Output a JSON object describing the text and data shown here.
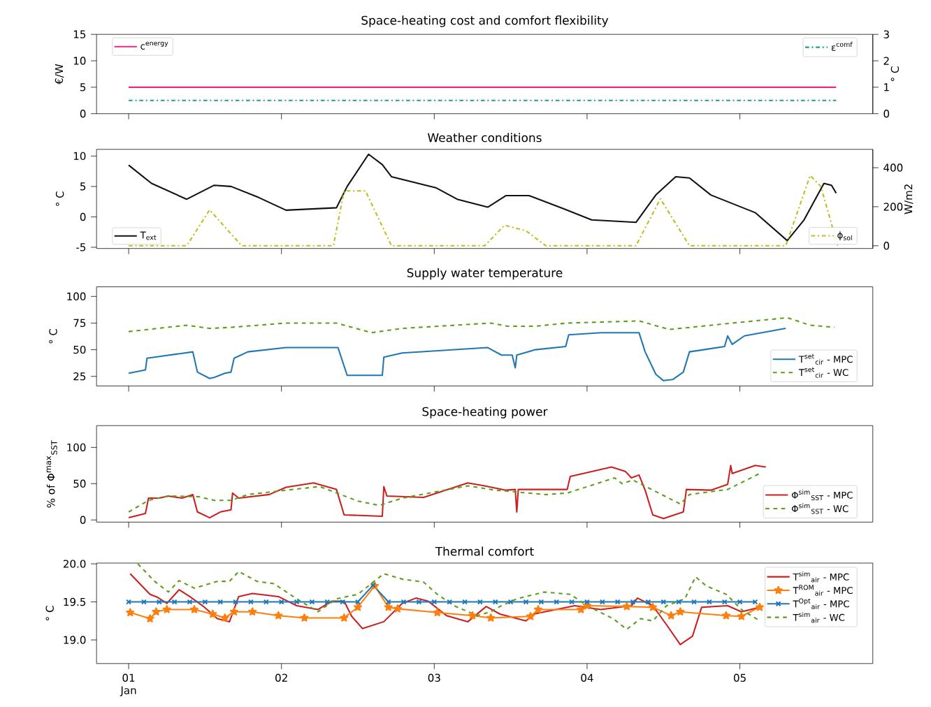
{
  "chart_data": [
    {
      "type": "line",
      "title": "Space-heating cost and comfort flexibility",
      "ylabel": "€/W",
      "y2label": "° C",
      "xlim": [
        0.79,
        5.87
      ],
      "xticks": [
        1,
        2,
        3,
        4,
        5
      ],
      "ylim": [
        0,
        15
      ],
      "yticks": [
        0,
        5,
        10,
        15
      ],
      "y2lim": [
        0,
        3
      ],
      "y2ticks": [
        0,
        1,
        2,
        3
      ],
      "tick_labels": "y",
      "legend": "top left",
      "series": [
        {
          "name": "c$^{energy}$",
          "color": "#e7298a",
          "x": [
            1,
            5.63
          ],
          "values": [
            5,
            5
          ],
          "line_style": "solid"
        },
        {
          "name": "ε$^{comf}$",
          "color": "#1a9e96",
          "x": [
            1,
            5.63
          ],
          "values": [
            0.5,
            0.5
          ],
          "line_style": "dashdot",
          "axis": "y2"
        }
      ]
    },
    {
      "type": "line",
      "title": "Weather conditions",
      "ylabel": "° C",
      "y2label": "W/m2",
      "xlim": [
        0.79,
        5.87
      ],
      "xticks": [
        1,
        2,
        3,
        4,
        5
      ],
      "ylim": [
        -5.2,
        11.1
      ],
      "yticks": [
        -5,
        0,
        5,
        10
      ],
      "y2lim": [
        -14,
        494
      ],
      "y2ticks": [
        0,
        200,
        400
      ],
      "tick_labels": "y",
      "legend": "bottom left",
      "series": [
        {
          "name": "T$_{ext}$",
          "color": "#111111",
          "x": [
            1,
            1.15,
            1.38,
            1.56,
            1.67,
            1.85,
            2.03,
            2.36,
            2.43,
            2.57,
            2.66,
            2.72,
            3.01,
            3.15,
            3.35,
            3.47,
            3.62,
            3.84,
            4.03,
            4.32,
            4.45,
            4.58,
            4.67,
            4.81,
            5.1,
            5.31,
            5.42,
            5.55,
            5.6,
            5.63
          ],
          "values": [
            8.5,
            5.5,
            2.9,
            5.2,
            5.0,
            3.2,
            1.1,
            1.5,
            5.0,
            10.3,
            8.6,
            6.6,
            4.8,
            2.9,
            1.6,
            3.5,
            3.5,
            1.4,
            -0.5,
            -0.9,
            3.6,
            6.6,
            6.4,
            3.6,
            0.7,
            -3.9,
            -0.5,
            5.5,
            5.2,
            3.9
          ],
          "line_style": "solid"
        },
        {
          "name": "ϕ$_{sol}$",
          "color": "#bcbd22",
          "x": [
            1,
            1.38,
            1.53,
            1.74,
            2.34,
            2.41,
            2.55,
            2.72,
            3.33,
            3.46,
            3.6,
            3.73,
            4.32,
            4.48,
            4.67,
            5.3,
            5.46,
            5.53,
            5.64
          ],
          "values": [
            0,
            0,
            184,
            0,
            0,
            281,
            281,
            0,
            0,
            105,
            77,
            0,
            0,
            241,
            0,
            0,
            360,
            304,
            0
          ],
          "line_style": "dashdot",
          "axis": "y2"
        }
      ]
    },
    {
      "type": "line",
      "title": "Supply water temperature",
      "ylabel": "° C",
      "xlim": [
        0.79,
        5.87
      ],
      "xticks": [
        1,
        2,
        3,
        4,
        5
      ],
      "ylim": [
        16,
        109
      ],
      "yticks": [
        25,
        50,
        75,
        100
      ],
      "tick_labels": "y",
      "legend": "bottom right",
      "series": [
        {
          "name": "T$^{set}$$_{cir}$ - MPC",
          "color": "#1f77b4",
          "x": [
            1,
            1.11,
            1.12,
            1.42,
            1.45,
            1.53,
            1.56,
            1.63,
            1.67,
            1.69,
            1.78,
            2.03,
            2.37,
            2.43,
            2.66,
            2.67,
            2.79,
            3.35,
            3.44,
            3.51,
            3.53,
            3.54,
            3.66,
            3.86,
            3.88,
            4.09,
            4.34,
            4.38,
            4.45,
            4.5,
            4.56,
            4.63,
            4.67,
            4.9,
            4.92,
            4.95,
            5.03,
            5.3
          ],
          "values": [
            28,
            31,
            42,
            48,
            29,
            23,
            24,
            28,
            29,
            42,
            48,
            52,
            52,
            26,
            26,
            43,
            47,
            52,
            45,
            45,
            33,
            45,
            50,
            53,
            64,
            66,
            66,
            48,
            27,
            21,
            22,
            29,
            48,
            53,
            63,
            55,
            63,
            70
          ],
          "line_style": "solid"
        },
        {
          "name": "T$^{set}$$_{cir}$ - WC",
          "color": "#5a9e1a",
          "x": [
            1,
            1.38,
            1.53,
            1.67,
            2.03,
            2.36,
            2.59,
            2.79,
            3.37,
            3.48,
            3.66,
            3.87,
            4.34,
            4.54,
            4.95,
            5.31,
            5.46,
            5.62
          ],
          "values": [
            67,
            73,
            70,
            71,
            75,
            75,
            66,
            70,
            75,
            72,
            72,
            75,
            77,
            69,
            75,
            80,
            73,
            71
          ],
          "line_style": "dashed"
        }
      ]
    },
    {
      "type": "line",
      "title": "Space-heating power",
      "ylabel": "% of Φ$^{max}$$_{SST}$",
      "xlim": [
        0.79,
        5.87
      ],
      "xticks": [
        1,
        2,
        3,
        4,
        5
      ],
      "ylim": [
        -3,
        130
      ],
      "yticks": [
        0,
        50,
        100
      ],
      "tick_labels": "y",
      "legend": "bottom right",
      "series": [
        {
          "name": "Φ$^{sim}$$_{SST}$ - MPC",
          "color": "#cc1f1f",
          "x": [
            1,
            1.11,
            1.13,
            1.2,
            1.26,
            1.35,
            1.42,
            1.45,
            1.53,
            1.6,
            1.67,
            1.68,
            1.72,
            1.92,
            2.03,
            2.21,
            2.36,
            2.41,
            2.66,
            2.67,
            2.69,
            2.93,
            3.22,
            3.33,
            3.47,
            3.53,
            3.54,
            3.55,
            3.87,
            3.89,
            4.16,
            4.25,
            4.29,
            4.34,
            4.38,
            4.43,
            4.5,
            4.63,
            4.65,
            4.81,
            4.92,
            4.94,
            4.95,
            5.1,
            5.17
          ],
          "values": [
            3,
            9,
            30,
            30,
            33,
            30,
            35,
            11,
            3,
            11,
            14,
            37,
            30,
            35,
            45,
            51,
            42,
            7,
            5,
            46,
            33,
            31,
            51,
            47,
            41,
            42,
            11,
            42,
            42,
            60,
            73,
            67,
            58,
            62,
            41,
            7,
            2,
            11,
            42,
            41,
            49,
            75,
            64,
            75,
            73
          ],
          "line_style": "solid"
        },
        {
          "name": "Φ$^{sim}$$_{SST}$ - WC",
          "color": "#5a9e1a",
          "x": [
            1,
            1.13,
            1.26,
            1.46,
            1.56,
            1.67,
            1.78,
            2.03,
            2.25,
            2.5,
            2.64,
            2.79,
            3.22,
            3.4,
            3.73,
            3.87,
            4.18,
            4.23,
            4.3,
            4.61,
            4.67,
            4.92,
            5.13
          ],
          "values": [
            11,
            27,
            33,
            32,
            27,
            27,
            35,
            41,
            46,
            26,
            20,
            30,
            47,
            41,
            35,
            37,
            58,
            50,
            55,
            22,
            35,
            42,
            64
          ],
          "line_style": "dashed"
        }
      ]
    },
    {
      "type": "line",
      "title": "Thermal comfort",
      "ylabel": "° C",
      "xlim": [
        0.79,
        5.87
      ],
      "xticks": [
        {
          "value": 1,
          "label": "01 Jan"
        },
        {
          "value": 2,
          "label": "02"
        },
        {
          "value": 3,
          "label": "03"
        },
        {
          "value": 4,
          "label": "04"
        },
        {
          "value": 5,
          "label": "05"
        }
      ],
      "ylim": [
        18.69,
        20.01
      ],
      "yticks": [
        {
          "value": 19,
          "label": "19.0"
        },
        {
          "value": 19.5,
          "label": "19.5"
        },
        {
          "value": 20,
          "label": "20.0"
        }
      ],
      "legend": "top right",
      "series": [
        {
          "name": "T$^{sim}$$_{air}$ - MPC",
          "color": "#cc1f1f",
          "x": [
            1.01,
            1.14,
            1.19,
            1.25,
            1.33,
            1.4,
            1.49,
            1.58,
            1.66,
            1.72,
            1.81,
            1.98,
            2.1,
            2.24,
            2.33,
            2.41,
            2.46,
            2.53,
            2.67,
            2.79,
            2.88,
            2.96,
            3.08,
            3.22,
            3.34,
            3.43,
            3.6,
            3.65,
            3.92,
            4.09,
            4.29,
            4.33,
            4.43,
            4.52,
            4.61,
            4.69,
            4.75,
            4.92,
            5.01,
            5.13
          ],
          "values": [
            19.87,
            19.6,
            19.56,
            19.48,
            19.66,
            19.57,
            19.44,
            19.28,
            19.24,
            19.57,
            19.61,
            19.57,
            19.45,
            19.4,
            19.51,
            19.51,
            19.31,
            19.15,
            19.24,
            19.48,
            19.55,
            19.51,
            19.32,
            19.24,
            19.44,
            19.34,
            19.25,
            19.34,
            19.45,
            19.4,
            19.45,
            19.55,
            19.45,
            19.2,
            18.94,
            19.05,
            19.43,
            19.45,
            19.37,
            19.43
          ],
          "line_style": "solid",
          "marker": "none"
        },
        {
          "name": "T$^{ROM}$$_{air}$ - MPC",
          "color": "#ff7f0e",
          "x": [
            1.01,
            1.14,
            1.18,
            1.25,
            1.43,
            1.55,
            1.63,
            1.69,
            1.81,
            1.98,
            2.15,
            2.41,
            2.5,
            2.61,
            2.7,
            2.76,
            3.02,
            3.25,
            3.37,
            3.63,
            3.68,
            3.96,
            4.0,
            4.26,
            4.43,
            4.55,
            4.61,
            4.91,
            5.01,
            5.13
          ],
          "values": [
            19.36,
            19.28,
            19.37,
            19.4,
            19.4,
            19.34,
            19.29,
            19.37,
            19.37,
            19.32,
            19.29,
            19.29,
            19.43,
            19.71,
            19.43,
            19.41,
            19.36,
            19.32,
            19.29,
            19.31,
            19.4,
            19.4,
            19.45,
            19.44,
            19.43,
            19.32,
            19.37,
            19.32,
            19.31,
            19.43
          ],
          "line_style": "solid",
          "marker": "star"
        },
        {
          "name": "T$^{Opt}$$_{air}$ - MPC",
          "color": "#1f77b4",
          "x": [
            1.0,
            1.1,
            1.2,
            1.3,
            1.4,
            1.5,
            1.6,
            1.7,
            1.8,
            1.9,
            2.0,
            2.1,
            2.2,
            2.3,
            2.4,
            2.5,
            2.6,
            2.7,
            2.8,
            2.9,
            3.0,
            3.1,
            3.2,
            3.3,
            3.4,
            3.5,
            3.6,
            3.7,
            3.8,
            3.9,
            4.0,
            4.1,
            4.2,
            4.3,
            4.4,
            4.5,
            4.6,
            4.7,
            4.8,
            4.9,
            5.0,
            5.1
          ],
          "values": [
            19.5,
            19.5,
            19.5,
            19.5,
            19.5,
            19.5,
            19.5,
            19.5,
            19.5,
            19.5,
            19.5,
            19.5,
            19.5,
            19.5,
            19.5,
            19.5,
            19.72,
            19.5,
            19.5,
            19.5,
            19.5,
            19.5,
            19.5,
            19.5,
            19.5,
            19.5,
            19.5,
            19.5,
            19.5,
            19.5,
            19.5,
            19.5,
            19.5,
            19.5,
            19.5,
            19.5,
            19.5,
            19.5,
            19.5,
            19.5,
            19.5,
            19.5
          ],
          "line_style": "solid",
          "marker": "cross"
        },
        {
          "name": "T$^{sim}$$_{air}$ - WC",
          "color": "#5a9e1a",
          "x": [
            1.06,
            1.17,
            1.26,
            1.33,
            1.43,
            1.58,
            1.66,
            1.72,
            1.84,
            1.95,
            2.1,
            2.24,
            2.36,
            2.5,
            2.67,
            2.79,
            2.93,
            3.02,
            3.13,
            3.28,
            3.37,
            3.43,
            3.54,
            3.72,
            3.89,
            4.0,
            4.17,
            4.26,
            4.35,
            4.43,
            4.52,
            4.64,
            4.71,
            4.78,
            4.91,
            5.01,
            5.13
          ],
          "values": [
            20.0,
            19.77,
            19.63,
            19.78,
            19.68,
            19.77,
            19.77,
            19.9,
            19.77,
            19.74,
            19.54,
            19.37,
            19.54,
            19.6,
            19.87,
            19.8,
            19.76,
            19.6,
            19.45,
            19.32,
            19.37,
            19.44,
            19.54,
            19.63,
            19.6,
            19.45,
            19.28,
            19.14,
            19.28,
            19.25,
            19.45,
            19.54,
            19.83,
            19.71,
            19.6,
            19.4,
            19.25
          ],
          "line_style": "dashed",
          "marker": "none"
        }
      ]
    }
  ]
}
